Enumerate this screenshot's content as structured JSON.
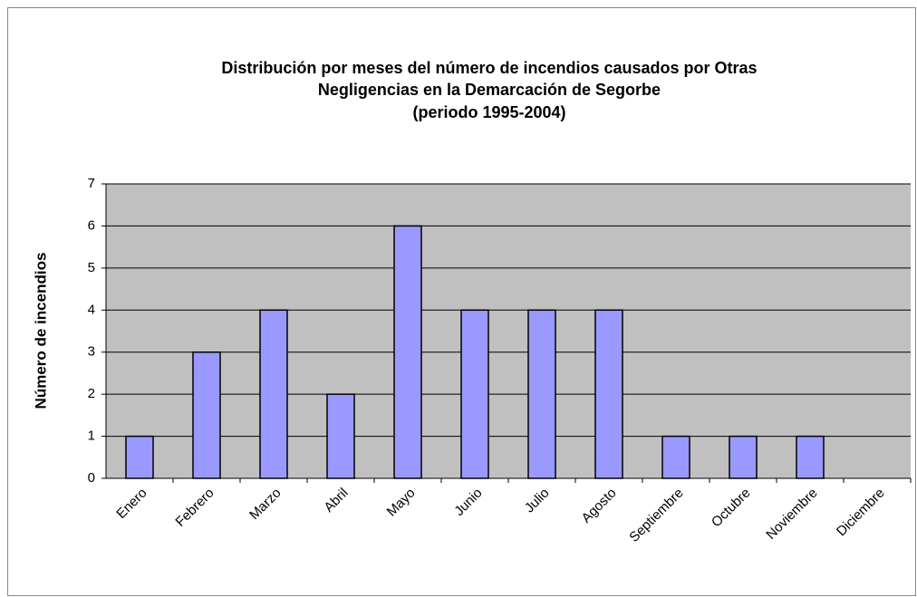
{
  "chart_data": {
    "type": "bar",
    "title": [
      "Distribución por meses del número de incendios causados por Otras",
      "Negligencias en la Demarcación de Segorbe",
      "(periodo 1995-2004)"
    ],
    "y_label": "Número de incendios",
    "categories": [
      "Enero",
      "Febrero",
      "Marzo",
      "Abril",
      "Mayo",
      "Junio",
      "Julio",
      "Agosto",
      "Septiembre",
      "Octubre",
      "Noviembre",
      "Diciembre"
    ],
    "values": [
      1,
      3,
      4,
      2,
      6,
      4,
      4,
      4,
      1,
      1,
      1,
      0
    ],
    "color": "#9999ff",
    "ylim": [
      0,
      7
    ],
    "yticks": [
      0,
      1,
      2,
      3,
      4,
      5,
      6,
      7
    ],
    "grid": true
  }
}
